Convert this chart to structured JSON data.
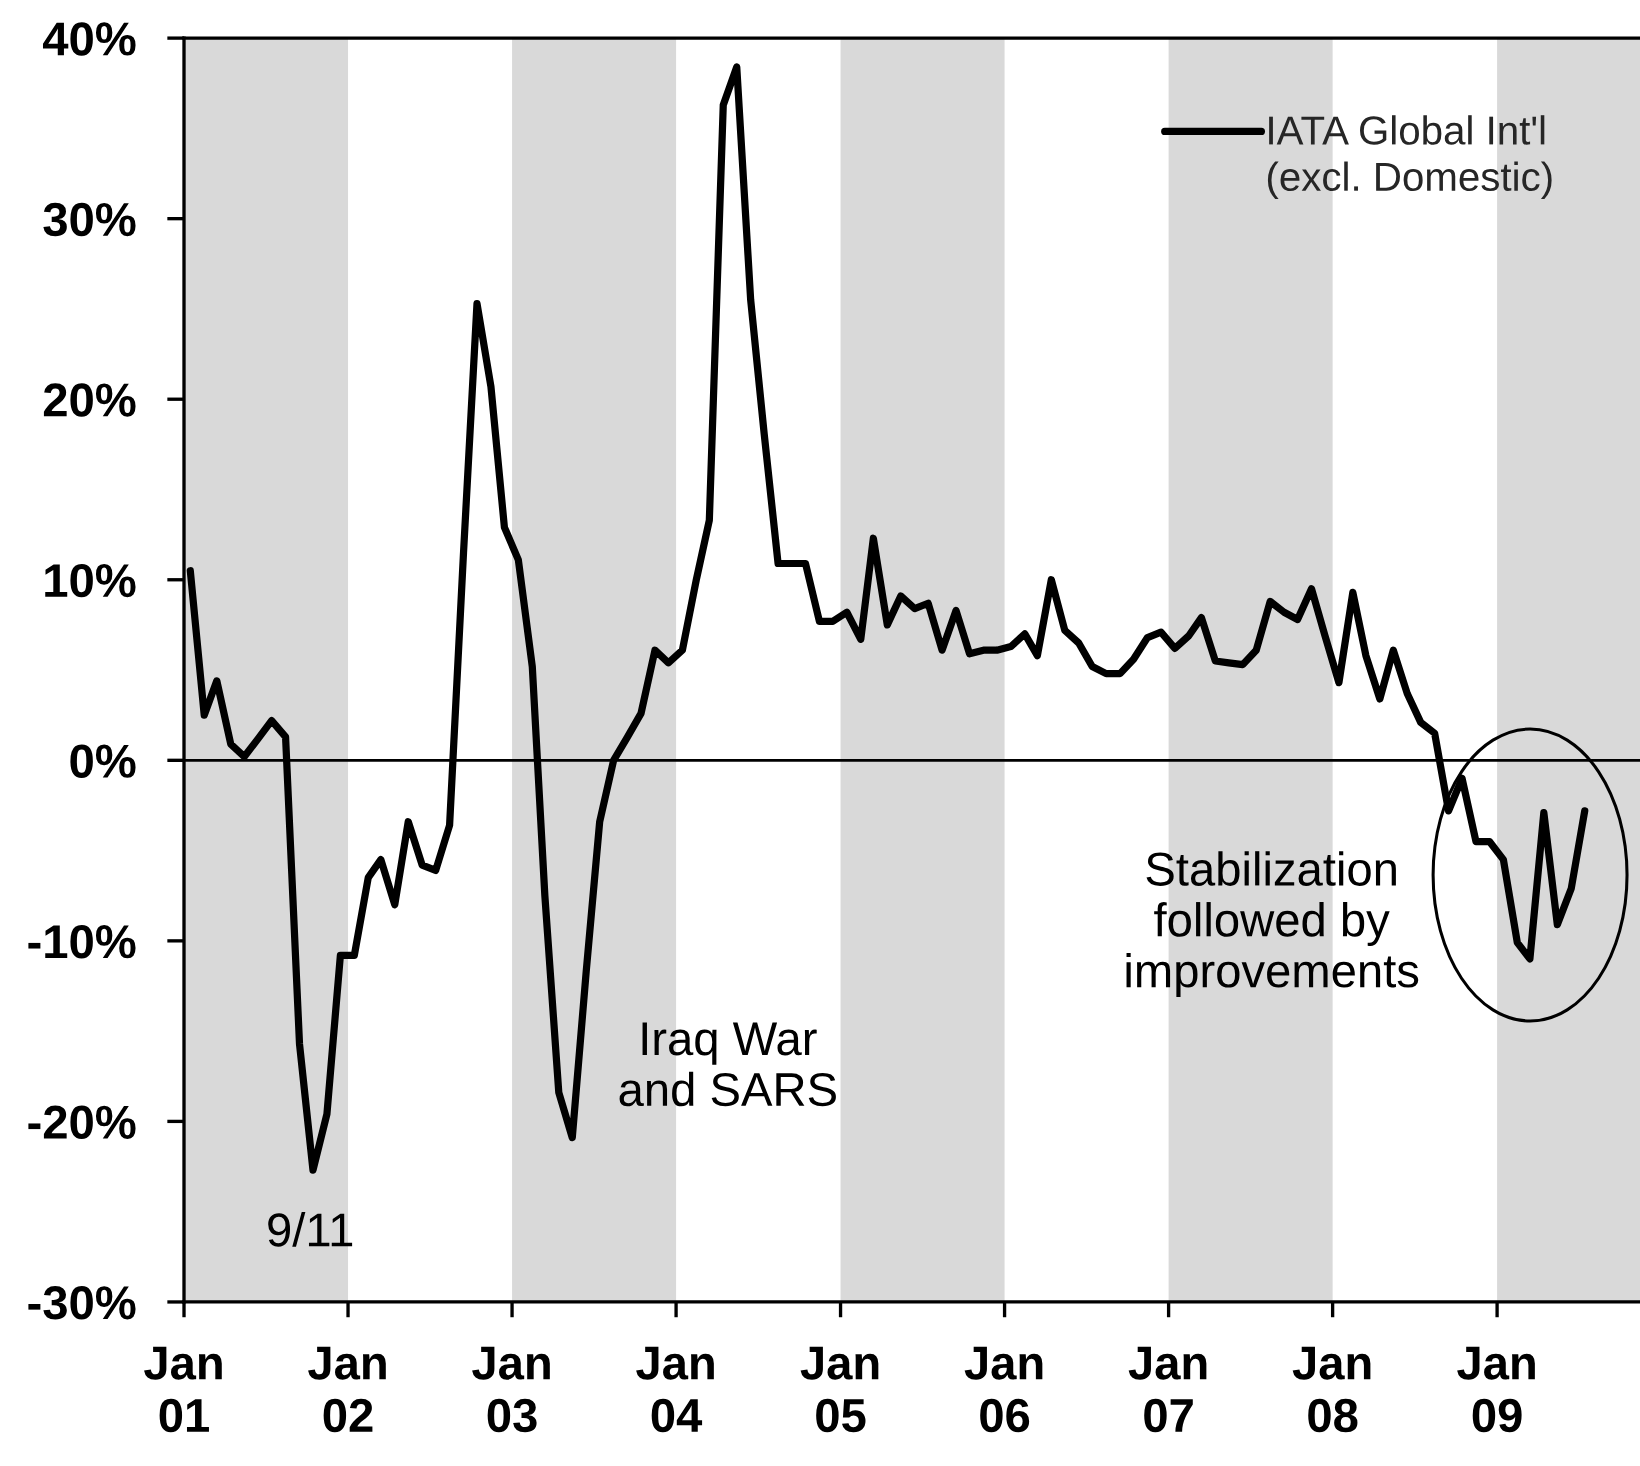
{
  "chart_data": {
    "type": "line",
    "x": [
      "2001-01-15",
      "2001-02-15",
      "2001-03-15",
      "2001-04-15",
      "2001-05-15",
      "2001-06-15",
      "2001-07-15",
      "2001-08-15",
      "2001-09-15",
      "2001-10-15",
      "2001-11-15",
      "2001-12-15",
      "2002-01-15",
      "2002-02-15",
      "2002-03-15",
      "2002-04-15",
      "2002-05-15",
      "2002-06-15",
      "2002-07-15",
      "2002-08-15",
      "2002-09-15",
      "2002-10-15",
      "2002-11-15",
      "2002-12-15",
      "2003-01-15",
      "2003-02-15",
      "2003-03-15",
      "2003-04-15",
      "2003-05-15",
      "2003-06-15",
      "2003-07-15",
      "2003-08-15",
      "2003-09-15",
      "2003-10-15",
      "2003-11-15",
      "2003-12-15",
      "2004-01-15",
      "2004-02-15",
      "2004-03-15",
      "2004-04-15",
      "2004-05-15",
      "2004-06-15",
      "2004-07-15",
      "2004-08-15",
      "2004-09-15",
      "2004-10-15",
      "2004-11-15",
      "2004-12-15",
      "2005-01-15",
      "2005-02-15",
      "2005-03-15",
      "2005-04-15",
      "2005-05-15",
      "2005-06-15",
      "2005-07-15",
      "2005-08-15",
      "2005-09-15",
      "2005-10-15",
      "2005-11-15",
      "2005-12-15",
      "2006-01-15",
      "2006-02-15",
      "2006-03-15",
      "2006-04-15",
      "2006-05-15",
      "2006-06-15",
      "2006-07-15",
      "2006-08-15",
      "2006-09-15",
      "2006-10-15",
      "2006-11-15",
      "2006-12-15",
      "2007-01-15",
      "2007-02-15",
      "2007-03-15",
      "2007-04-15",
      "2007-05-15",
      "2007-06-15",
      "2007-07-15",
      "2007-08-15",
      "2007-09-15",
      "2007-10-15",
      "2007-11-15",
      "2007-12-15",
      "2008-01-15",
      "2008-02-15",
      "2008-03-15",
      "2008-04-15",
      "2008-05-15",
      "2008-06-15",
      "2008-07-15",
      "2008-08-15",
      "2008-09-15",
      "2008-10-15",
      "2008-11-15",
      "2008-12-15",
      "2009-01-15",
      "2009-02-15",
      "2009-03-15",
      "2009-04-15",
      "2009-05-15",
      "2009-06-15",
      "2009-07-15"
    ],
    "series": [
      {
        "name": "IATA Global Int'l\n(excl. Domestic)",
        "color": "#000000",
        "values": [
          10.5,
          2.5,
          4.4,
          0.9,
          0.2,
          1.2,
          2.2,
          1.3,
          -15.7,
          -22.7,
          -19.6,
          -10.8,
          -10.8,
          -6.5,
          -5.5,
          -8.0,
          -3.4,
          -5.8,
          -6.1,
          -3.6,
          11.5,
          25.3,
          20.7,
          12.9,
          11.1,
          5.2,
          -7.5,
          -18.4,
          -20.9,
          -11.7,
          -3.4,
          0.0,
          1.3,
          2.6,
          6.1,
          5.4,
          6.1,
          10.0,
          13.3,
          36.3,
          38.4,
          25.5,
          18.1,
          10.9,
          10.9,
          10.9,
          7.7,
          7.7,
          8.2,
          6.7,
          12.3,
          7.5,
          9.1,
          8.4,
          8.7,
          6.1,
          8.3,
          5.9,
          6.1,
          6.1,
          6.3,
          7.0,
          5.8,
          10.0,
          7.2,
          6.5,
          5.2,
          4.8,
          4.8,
          5.6,
          6.8,
          7.1,
          6.2,
          6.9,
          7.9,
          5.5,
          5.4,
          5.3,
          6.1,
          8.8,
          8.2,
          7.8,
          9.5,
          6.9,
          4.3,
          9.3,
          5.8,
          3.4,
          6.1,
          3.7,
          2.1,
          1.5,
          -2.8,
          -1.0,
          -4.5,
          -4.5,
          -5.5,
          -10.1,
          -11.0,
          -2.9,
          -9.1,
          -7.1,
          -2.8
        ]
      }
    ],
    "xlim": [
      "2001-01",
      "2009-11-15"
    ],
    "xticks": [
      {
        "value": "2001-01",
        "label": "Jan\n01"
      },
      {
        "value": "2002-01",
        "label": "Jan\n02"
      },
      {
        "value": "2003-01",
        "label": "Jan\n03"
      },
      {
        "value": "2004-01",
        "label": "Jan\n04"
      },
      {
        "value": "2005-01",
        "label": "Jan\n05"
      },
      {
        "value": "2006-01",
        "label": "Jan\n06"
      },
      {
        "value": "2007-01",
        "label": "Jan\n07"
      },
      {
        "value": "2008-01",
        "label": "Jan\n08"
      },
      {
        "value": "2009-01",
        "label": "Jan\n09"
      }
    ],
    "ylim": [
      -30,
      40
    ],
    "yticks": [
      {
        "value": -30,
        "label": "-30%"
      },
      {
        "value": -20,
        "label": "-20%"
      },
      {
        "value": -10,
        "label": "-10%"
      },
      {
        "value": 0,
        "label": "0%"
      },
      {
        "value": 10,
        "label": "10%"
      },
      {
        "value": 20,
        "label": "20%"
      },
      {
        "value": 30,
        "label": "30%"
      },
      {
        "value": 40,
        "label": "40%"
      }
    ],
    "bands": [
      {
        "axis": "x",
        "from": "2001-01",
        "to": "2002-01",
        "color": "#d9d9d9"
      },
      {
        "axis": "x",
        "from": "2003-01",
        "to": "2004-01",
        "color": "#d9d9d9"
      },
      {
        "axis": "x",
        "from": "2005-01",
        "to": "2006-01",
        "color": "#d9d9d9"
      },
      {
        "axis": "x",
        "from": "2007-01",
        "to": "2008-01",
        "color": "#d9d9d9"
      },
      {
        "axis": "x",
        "from": "2009-01",
        "to": "2009-11-15",
        "color": "#d9d9d9"
      }
    ],
    "ref_lines": [
      {
        "axis": "y",
        "value": 0,
        "color": "#000000"
      }
    ],
    "annotations": [
      {
        "text": "9/11",
        "x": "2001-10-15",
        "y": -22.7
      },
      {
        "text": "Iraq War\nand SARS",
        "x": "2003-05-15",
        "y": -20.9
      },
      "Stabilization\nfollowed by\nimprovements"
    ],
    "legend": "top right",
    "line_style": "solid"
  }
}
